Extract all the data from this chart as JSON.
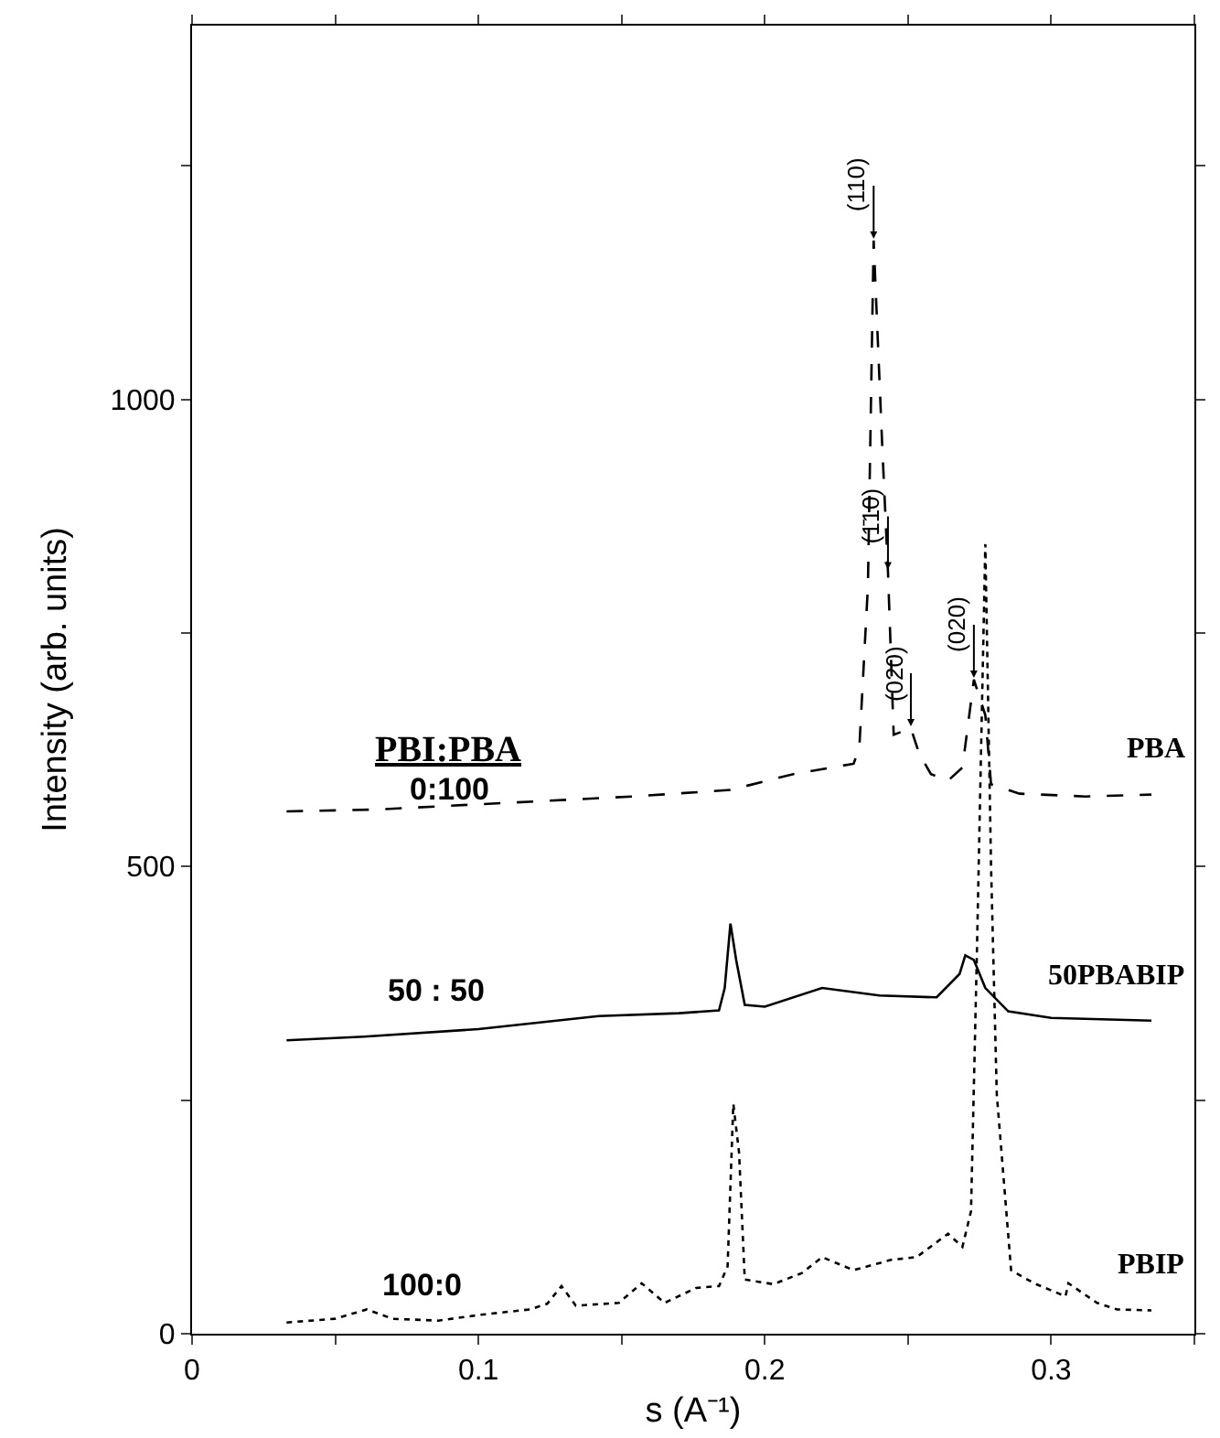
{
  "chart_data": {
    "type": "line",
    "xlabel": "s (A⁻¹)",
    "ylabel": "Intensity (arb. units)",
    "xlim": [
      0,
      0.35
    ],
    "xticks": [
      0,
      {
        "value": 0.05,
        "label": null
      },
      0.1,
      {
        "value": 0.15,
        "label": null
      },
      0.2,
      {
        "value": 0.25,
        "label": null
      },
      0.3,
      {
        "value": 0.35,
        "label": null
      }
    ],
    "ylim": [
      0,
      1400
    ],
    "yticks": [
      0,
      {
        "value": 250,
        "label": null
      },
      500,
      {
        "value": 750,
        "label": null
      },
      1000,
      {
        "value": 1250,
        "label": null
      }
    ],
    "grid": false,
    "legend": false,
    "marker": "none",
    "series": [
      {
        "name": "PBA",
        "color": "#000000",
        "line_style": "dashed",
        "x": [
          0.033,
          0.064,
          0.109,
          0.154,
          0.188,
          0.21,
          0.231,
          0.233,
          0.236,
          0.238,
          0.241,
          0.243,
          0.245,
          0.251,
          0.254,
          0.258,
          0.264,
          0.269,
          0.273,
          0.277,
          0.279,
          0.289,
          0.312,
          0.335
        ],
        "values": [
          559,
          561,
          568,
          575,
          582,
          599,
          610,
          627,
          800,
          1170,
          950,
          816,
          641,
          648,
          620,
          599,
          592,
          606,
          700,
          662,
          588,
          578,
          575,
          577
        ]
      },
      {
        "name": "50PBABIP",
        "color": "#000000",
        "line_style": "solid",
        "x": [
          0.033,
          0.06,
          0.1,
          0.142,
          0.17,
          0.184,
          0.186,
          0.188,
          0.19,
          0.193,
          0.2,
          0.22,
          0.24,
          0.26,
          0.268,
          0.27,
          0.273,
          0.277,
          0.285,
          0.3,
          0.335
        ],
        "values": [
          314,
          318,
          326,
          340,
          343,
          346,
          370,
          439,
          400,
          352,
          350,
          370,
          362,
          360,
          385,
          405,
          400,
          370,
          345,
          338,
          335
        ]
      },
      {
        "name": "PBIP",
        "color": "#000000",
        "line_style": "dotted",
        "x": [
          0.033,
          0.05,
          0.061,
          0.07,
          0.086,
          0.1,
          0.118,
          0.124,
          0.129,
          0.134,
          0.149,
          0.157,
          0.165,
          0.176,
          0.184,
          0.187,
          0.189,
          0.191,
          0.193,
          0.203,
          0.213,
          0.22,
          0.231,
          0.244,
          0.253,
          0.264,
          0.269,
          0.272,
          0.274,
          0.277,
          0.279,
          0.281,
          0.286,
          0.294,
          0.305,
          0.306,
          0.316,
          0.323,
          0.335
        ],
        "values": [
          12,
          16,
          26,
          16,
          14,
          20,
          26,
          32,
          51,
          30,
          33,
          54,
          33,
          49,
          51,
          72,
          246,
          194,
          58,
          53,
          65,
          82,
          68,
          79,
          82,
          107,
          93,
          131,
          400,
          845,
          500,
          256,
          68,
          54,
          40,
          54,
          33,
          26,
          25
        ]
      }
    ],
    "annotations": [
      {
        "text": "(110)",
        "x": 0.238,
        "y": 1170
      },
      {
        "text": "(1̄10)",
        "x": 0.243,
        "y": 816
      },
      {
        "text": "(020)",
        "x": 0.251,
        "y": 648
      },
      {
        "text": "(020)",
        "x": 0.273,
        "y": 700
      },
      "PBI:PBA",
      "0:100",
      "50 : 50",
      "100:0"
    ]
  }
}
